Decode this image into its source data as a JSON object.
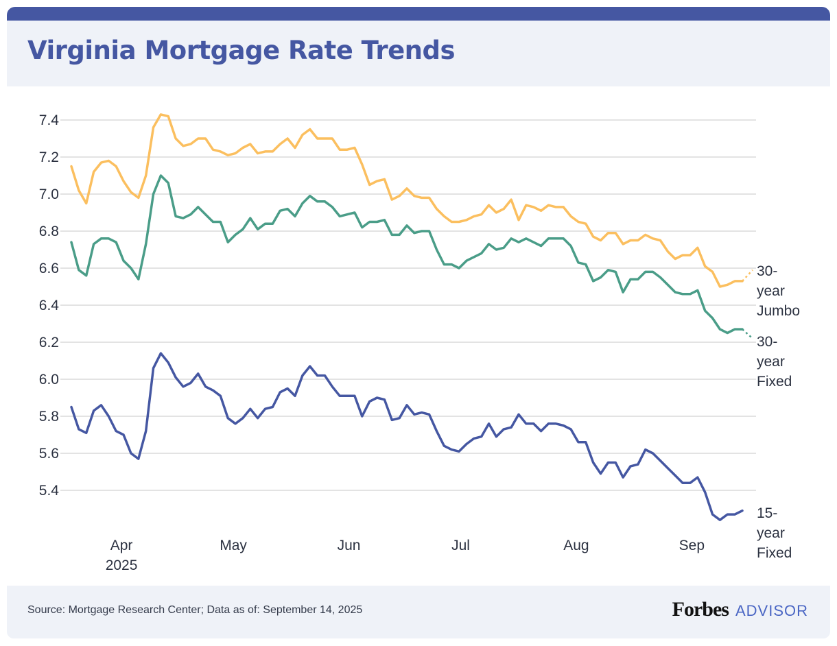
{
  "title": "Virginia Mortgage Rate Trends",
  "footer": {
    "source": "Source: Mortgage Research Center; Data as of: September 14, 2025",
    "logo_forbes": "Forbes",
    "logo_advisor": "ADVISOR"
  },
  "chart_data": {
    "type": "line",
    "title": "Virginia Mortgage Rate Trends",
    "xlabel": "",
    "ylabel": "",
    "ylim": [
      5.2,
      7.45
    ],
    "yticks": [
      "5.4",
      "5.6",
      "5.8",
      "6.0",
      "6.2",
      "6.4",
      "6.6",
      "6.8",
      "7.0",
      "7.2",
      "7.4"
    ],
    "xticks": [
      {
        "date": "2025-04-01",
        "label": "Apr",
        "sublabel": "2025"
      },
      {
        "date": "2025-05-01",
        "label": "May"
      },
      {
        "date": "2025-06-01",
        "label": "Jun"
      },
      {
        "date": "2025-07-01",
        "label": "Jul"
      },
      {
        "date": "2025-08-01",
        "label": "Aug"
      },
      {
        "date": "2025-09-01",
        "label": "Sep"
      }
    ],
    "grid": "horizontal",
    "legend": "end-of-line labels (right)",
    "x": [
      "2025-03-18",
      "2025-03-20",
      "2025-03-22",
      "2025-03-24",
      "2025-03-26",
      "2025-03-28",
      "2025-03-30",
      "2025-04-01",
      "2025-04-03",
      "2025-04-05",
      "2025-04-07",
      "2025-04-09",
      "2025-04-11",
      "2025-04-13",
      "2025-04-15",
      "2025-04-17",
      "2025-04-19",
      "2025-04-21",
      "2025-04-23",
      "2025-04-25",
      "2025-04-27",
      "2025-04-29",
      "2025-05-01",
      "2025-05-03",
      "2025-05-05",
      "2025-05-07",
      "2025-05-09",
      "2025-05-11",
      "2025-05-13",
      "2025-05-15",
      "2025-05-17",
      "2025-05-19",
      "2025-05-21",
      "2025-05-23",
      "2025-05-25",
      "2025-05-27",
      "2025-05-29",
      "2025-05-31",
      "2025-06-02",
      "2025-06-04",
      "2025-06-06",
      "2025-06-08",
      "2025-06-10",
      "2025-06-12",
      "2025-06-14",
      "2025-06-16",
      "2025-06-18",
      "2025-06-20",
      "2025-06-22",
      "2025-06-24",
      "2025-06-26",
      "2025-06-28",
      "2025-06-30",
      "2025-07-02",
      "2025-07-04",
      "2025-07-06",
      "2025-07-08",
      "2025-07-10",
      "2025-07-12",
      "2025-07-14",
      "2025-07-16",
      "2025-07-18",
      "2025-07-20",
      "2025-07-22",
      "2025-07-24",
      "2025-07-26",
      "2025-07-28",
      "2025-07-30",
      "2025-08-01",
      "2025-08-03",
      "2025-08-05",
      "2025-08-07",
      "2025-08-09",
      "2025-08-11",
      "2025-08-13",
      "2025-08-15",
      "2025-08-17",
      "2025-08-19",
      "2025-08-21",
      "2025-08-23",
      "2025-08-25",
      "2025-08-27",
      "2025-08-29",
      "2025-08-31",
      "2025-09-02",
      "2025-09-04",
      "2025-09-06",
      "2025-09-08",
      "2025-09-10",
      "2025-09-12",
      "2025-09-14"
    ],
    "series": [
      {
        "name": "30-year Jumbo",
        "label_lines": [
          "30-",
          "year",
          "Jumbo"
        ],
        "color": "#fbbf5f",
        "values": [
          7.15,
          7.02,
          6.95,
          7.12,
          7.17,
          7.18,
          7.15,
          7.07,
          7.01,
          6.98,
          7.1,
          7.36,
          7.43,
          7.42,
          7.3,
          7.26,
          7.27,
          7.3,
          7.3,
          7.24,
          7.23,
          7.21,
          7.22,
          7.25,
          7.27,
          7.22,
          7.23,
          7.23,
          7.27,
          7.3,
          7.25,
          7.32,
          7.35,
          7.3,
          7.3,
          7.3,
          7.24,
          7.24,
          7.25,
          7.16,
          7.05,
          7.07,
          7.08,
          6.97,
          6.99,
          7.03,
          6.99,
          6.98,
          6.98,
          6.92,
          6.88,
          6.85,
          6.85,
          6.86,
          6.88,
          6.89,
          6.94,
          6.9,
          6.92,
          6.97,
          6.86,
          6.94,
          6.93,
          6.91,
          6.94,
          6.93,
          6.93,
          6.88,
          6.85,
          6.84,
          6.77,
          6.75,
          6.79,
          6.79,
          6.73,
          6.75,
          6.75,
          6.78,
          6.76,
          6.75,
          6.69,
          6.65,
          6.67,
          6.67,
          6.71,
          6.61,
          6.58,
          6.5,
          6.51,
          6.53,
          6.53
        ]
      },
      {
        "name": "30-year Fixed",
        "label_lines": [
          "30-",
          "year",
          "Fixed"
        ],
        "color": "#4a9d88",
        "values": [
          6.74,
          6.59,
          6.56,
          6.73,
          6.76,
          6.76,
          6.74,
          6.64,
          6.6,
          6.54,
          6.73,
          7.0,
          7.1,
          7.06,
          6.88,
          6.87,
          6.89,
          6.93,
          6.89,
          6.85,
          6.85,
          6.74,
          6.78,
          6.81,
          6.87,
          6.81,
          6.84,
          6.84,
          6.91,
          6.92,
          6.88,
          6.95,
          6.99,
          6.96,
          6.96,
          6.93,
          6.88,
          6.89,
          6.9,
          6.82,
          6.85,
          6.85,
          6.86,
          6.78,
          6.78,
          6.83,
          6.79,
          6.8,
          6.8,
          6.7,
          6.62,
          6.62,
          6.6,
          6.64,
          6.66,
          6.68,
          6.73,
          6.7,
          6.71,
          6.76,
          6.74,
          6.76,
          6.74,
          6.72,
          6.76,
          6.76,
          6.76,
          6.72,
          6.63,
          6.62,
          6.53,
          6.55,
          6.59,
          6.58,
          6.47,
          6.54,
          6.54,
          6.58,
          6.58,
          6.55,
          6.51,
          6.47,
          6.46,
          6.46,
          6.48,
          6.37,
          6.33,
          6.27,
          6.25,
          6.27,
          6.27
        ]
      },
      {
        "name": "15-year Fixed",
        "label_lines": [
          "15-",
          "year",
          "Fixed"
        ],
        "color": "#4557a2",
        "values": [
          5.85,
          5.73,
          5.71,
          5.83,
          5.86,
          5.8,
          5.72,
          5.7,
          5.6,
          5.57,
          5.72,
          6.06,
          6.14,
          6.09,
          6.01,
          5.96,
          5.98,
          6.03,
          5.96,
          5.94,
          5.91,
          5.79,
          5.76,
          5.79,
          5.84,
          5.79,
          5.84,
          5.85,
          5.93,
          5.95,
          5.91,
          6.02,
          6.07,
          6.02,
          6.02,
          5.96,
          5.91,
          5.91,
          5.91,
          5.8,
          5.88,
          5.9,
          5.89,
          5.78,
          5.79,
          5.86,
          5.81,
          5.82,
          5.81,
          5.72,
          5.64,
          5.62,
          5.61,
          5.65,
          5.68,
          5.69,
          5.76,
          5.69,
          5.73,
          5.74,
          5.81,
          5.76,
          5.76,
          5.72,
          5.76,
          5.76,
          5.75,
          5.73,
          5.66,
          5.66,
          5.55,
          5.49,
          5.55,
          5.55,
          5.47,
          5.53,
          5.54,
          5.62,
          5.6,
          5.56,
          5.52,
          5.48,
          5.44,
          5.44,
          5.47,
          5.39,
          5.27,
          5.24,
          5.27,
          5.27,
          5.29
        ]
      }
    ]
  }
}
